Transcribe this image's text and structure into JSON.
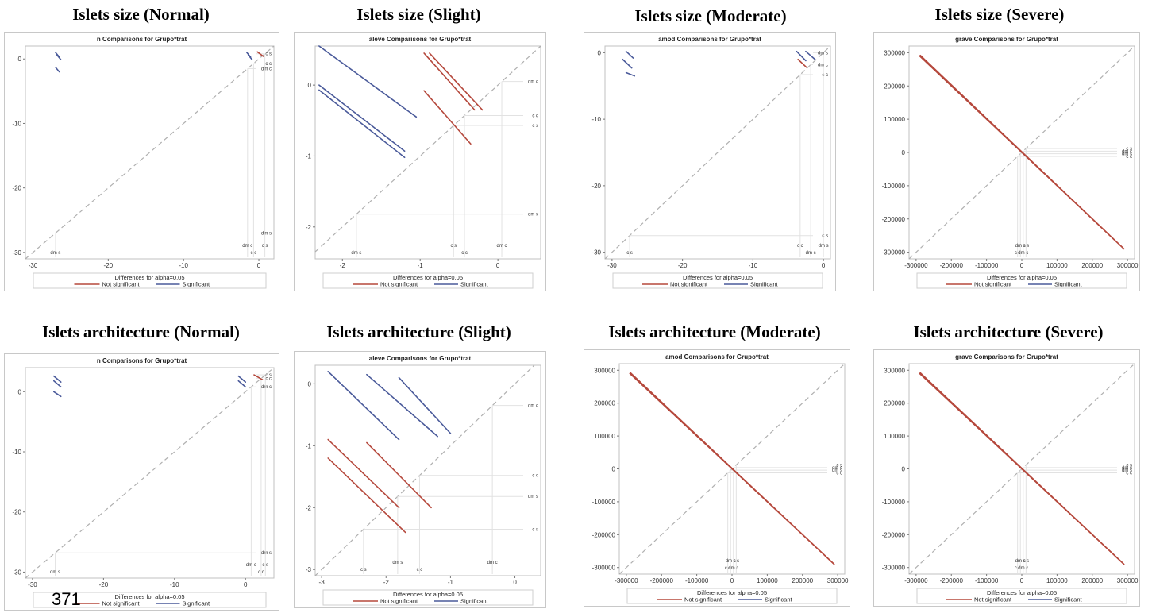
{
  "page": {
    "footnote": "371"
  },
  "legend": {
    "caption": "Differences for alpha=0.05",
    "not_significant": "Not significant",
    "significant": "Significant",
    "not_significant_color": "#b5483c",
    "significant_color": "#4a5a9a",
    "reference_color": "#b0b0b0"
  },
  "chart_data": [
    {
      "heading": "Islets size (Normal)",
      "title": "n Comparisons for Grupo*trat",
      "type": "scatter",
      "xlim": [
        -31,
        2
      ],
      "ylim": [
        -31,
        2
      ],
      "xticks": [
        -30,
        -20,
        -10,
        0
      ],
      "yticks": [
        0,
        -10,
        -20,
        -30
      ],
      "level_labels": [
        {
          "label": "dm s",
          "value": -27
        },
        {
          "label": "dm c",
          "value": -1.5
        },
        {
          "label": "c c",
          "value": -0.7
        },
        {
          "label": "c s",
          "value": 0.8
        }
      ],
      "lines": [
        {
          "x": [
            -27,
            -26.5
          ],
          "y": [
            1,
            0.3
          ],
          "sig": true
        },
        {
          "x": [
            -26.8,
            -26.3
          ],
          "y": [
            0.6,
            -0.1
          ],
          "sig": true
        },
        {
          "x": [
            -27,
            -26.5
          ],
          "y": [
            -1.3,
            -2
          ],
          "sig": true
        },
        {
          "x": [
            -1.6,
            -1.1
          ],
          "y": [
            1,
            0.3
          ],
          "sig": true
        },
        {
          "x": [
            -1.4,
            -0.9
          ],
          "y": [
            0.6,
            -0.1
          ],
          "sig": true
        },
        {
          "x": [
            -0.2,
            0.6
          ],
          "y": [
            1.1,
            0.4
          ],
          "sig": false
        }
      ]
    },
    {
      "heading": "Islets size (Slight)",
      "title": "aleve Comparisons for Grupo*trat",
      "type": "scatter",
      "xlim": [
        -2.35,
        0.55
      ],
      "ylim": [
        -2.45,
        0.55
      ],
      "xticks": [
        -2,
        -1,
        0
      ],
      "yticks": [
        0,
        -1,
        -2
      ],
      "level_labels": [
        {
          "label": "dm s",
          "value": -1.82
        },
        {
          "label": "c s",
          "value": -0.57
        },
        {
          "label": "c c",
          "value": -0.43
        },
        {
          "label": "dm c",
          "value": 0.05
        }
      ],
      "lines": [
        {
          "x": [
            -2.3,
            -1.05
          ],
          "y": [
            0.55,
            -0.45
          ],
          "sig": true
        },
        {
          "x": [
            -2.3,
            -1.2
          ],
          "y": [
            0,
            -0.93
          ],
          "sig": true
        },
        {
          "x": [
            -2.3,
            -1.2
          ],
          "y": [
            -0.07,
            -1.02
          ],
          "sig": true
        },
        {
          "x": [
            -0.95,
            -0.3
          ],
          "y": [
            0.45,
            -0.35
          ],
          "sig": false
        },
        {
          "x": [
            -0.88,
            -0.2
          ],
          "y": [
            0.45,
            -0.35
          ],
          "sig": false
        },
        {
          "x": [
            -0.95,
            -0.35
          ],
          "y": [
            -0.08,
            -0.83
          ],
          "sig": false
        }
      ]
    },
    {
      "heading": "Islets size (Moderate)",
      "title": "amod Comparisons for Grupo*trat",
      "type": "scatter",
      "xlim": [
        -31,
        1
      ],
      "ylim": [
        -31,
        1
      ],
      "xticks": [
        -30,
        -20,
        -10,
        0
      ],
      "yticks": [
        0,
        -10,
        -20,
        -30
      ],
      "level_labels": [
        {
          "label": "c s",
          "value": -27.5
        },
        {
          "label": "c c",
          "value": -3.3
        },
        {
          "label": "dm c",
          "value": -1.8
        },
        {
          "label": "dm s",
          "value": 0
        }
      ],
      "lines": [
        {
          "x": [
            -28,
            -27
          ],
          "y": [
            0.2,
            -0.8
          ],
          "sig": true
        },
        {
          "x": [
            -28.5,
            -27.2
          ],
          "y": [
            -1,
            -2.3
          ],
          "sig": true
        },
        {
          "x": [
            -28,
            -26.8
          ],
          "y": [
            -3,
            -3.5
          ],
          "sig": true
        },
        {
          "x": [
            -3.8,
            -2.5
          ],
          "y": [
            0.2,
            -1.2
          ],
          "sig": true
        },
        {
          "x": [
            -3.6,
            -2.4
          ],
          "y": [
            -1,
            -2.2
          ],
          "sig": false
        },
        {
          "x": [
            -2.5,
            -1.2
          ],
          "y": [
            0.2,
            -1
          ],
          "sig": true
        }
      ]
    },
    {
      "heading": "Islets size (Severe)",
      "title": "grave Comparisons for Grupo*trat",
      "type": "scatter",
      "xlim": [
        -320000,
        320000
      ],
      "ylim": [
        -320000,
        320000
      ],
      "xticks": [
        -300000,
        -200000,
        -100000,
        0,
        100000,
        200000,
        300000
      ],
      "yticks": [
        300000,
        200000,
        100000,
        0,
        -100000,
        -200000,
        -300000
      ],
      "level_labels": [
        {
          "label": "c c",
          "value": -12000
        },
        {
          "label": "dm s",
          "value": -4000
        },
        {
          "label": "dm c",
          "value": 4000
        },
        {
          "label": "c s",
          "value": 12000
        }
      ],
      "lines": [
        {
          "x": [
            -290000,
            290000
          ],
          "y": [
            290000,
            -290000
          ],
          "sig": false
        },
        {
          "x": [
            -288000,
            288000
          ],
          "y": [
            292000,
            -288000
          ],
          "sig": false
        }
      ]
    },
    {
      "heading": "Islets architecture (Normal)",
      "title": "n Comparisons for Grupo*trat",
      "type": "scatter",
      "xlim": [
        -31,
        4
      ],
      "ylim": [
        -31,
        4
      ],
      "xticks": [
        -30,
        -20,
        -10,
        0
      ],
      "yticks": [
        0,
        -10,
        -20,
        -30
      ],
      "level_labels": [
        {
          "label": "dm s",
          "value": -26.8
        },
        {
          "label": "dm c",
          "value": 0.8
        },
        {
          "label": "c c",
          "value": 2.2
        },
        {
          "label": "c s",
          "value": 2.8
        }
      ],
      "lines": [
        {
          "x": [
            -27,
            -26
          ],
          "y": [
            2.6,
            1.6
          ],
          "sig": true
        },
        {
          "x": [
            -27,
            -26
          ],
          "y": [
            1.8,
            0.8
          ],
          "sig": true
        },
        {
          "x": [
            -27,
            -26
          ],
          "y": [
            0,
            -0.8
          ],
          "sig": true
        },
        {
          "x": [
            -1,
            0
          ],
          "y": [
            2.6,
            1.6
          ],
          "sig": true
        },
        {
          "x": [
            -1,
            0
          ],
          "y": [
            1.8,
            0.8
          ],
          "sig": true
        },
        {
          "x": [
            1.2,
            2.4
          ],
          "y": [
            2.8,
            2
          ],
          "sig": false
        }
      ]
    },
    {
      "heading": "Islets architecture (Slight)",
      "title": "aleve Comparisons for Grupo*trat",
      "type": "scatter",
      "xlim": [
        -3.1,
        0.4
      ],
      "ylim": [
        -3.1,
        0.3
      ],
      "xticks": [
        -3,
        -2,
        -1,
        0
      ],
      "yticks": [
        0,
        -1,
        -2,
        -3
      ],
      "level_labels": [
        {
          "label": "c s",
          "value": -2.35
        },
        {
          "label": "dm s",
          "value": -1.82
        },
        {
          "label": "c c",
          "value": -1.48
        },
        {
          "label": "dm c",
          "value": -0.35
        }
      ],
      "lines": [
        {
          "x": [
            -2.9,
            -1.8
          ],
          "y": [
            0.2,
            -0.9
          ],
          "sig": true
        },
        {
          "x": [
            -2.3,
            -1.2
          ],
          "y": [
            0.15,
            -0.85
          ],
          "sig": true
        },
        {
          "x": [
            -1.8,
            -1.0
          ],
          "y": [
            0.1,
            -0.8
          ],
          "sig": true
        },
        {
          "x": [
            -2.9,
            -1.8
          ],
          "y": [
            -0.9,
            -2.0
          ],
          "sig": false
        },
        {
          "x": [
            -2.9,
            -1.7
          ],
          "y": [
            -1.2,
            -2.4
          ],
          "sig": false
        },
        {
          "x": [
            -2.3,
            -1.3
          ],
          "y": [
            -0.95,
            -2.0
          ],
          "sig": false
        }
      ]
    },
    {
      "heading": "Islets architecture (Moderate)",
      "title": "amod Comparisons for Grupo*trat",
      "type": "scatter",
      "xlim": [
        -320000,
        320000
      ],
      "ylim": [
        -320000,
        320000
      ],
      "xticks": [
        -300000,
        -200000,
        -100000,
        0,
        100000,
        200000,
        300000
      ],
      "yticks": [
        300000,
        200000,
        100000,
        0,
        -100000,
        -200000,
        -300000
      ],
      "level_labels": [
        {
          "label": "c c",
          "value": -12000
        },
        {
          "label": "dm s",
          "value": -4000
        },
        {
          "label": "dm c",
          "value": 4000
        },
        {
          "label": "c s",
          "value": 12000
        }
      ],
      "lines": [
        {
          "x": [
            -290000,
            290000
          ],
          "y": [
            290000,
            -290000
          ],
          "sig": false
        },
        {
          "x": [
            -288000,
            288000
          ],
          "y": [
            292000,
            -288000
          ],
          "sig": false
        }
      ]
    },
    {
      "heading": "Islets architecture (Severe)",
      "title": "grave Comparisons for Grupo*trat",
      "type": "scatter",
      "xlim": [
        -320000,
        320000
      ],
      "ylim": [
        -320000,
        320000
      ],
      "xticks": [
        -300000,
        -200000,
        -100000,
        0,
        100000,
        200000,
        300000
      ],
      "yticks": [
        300000,
        200000,
        100000,
        0,
        -100000,
        -200000,
        -300000
      ],
      "level_labels": [
        {
          "label": "c c",
          "value": -12000
        },
        {
          "label": "dm s",
          "value": -4000
        },
        {
          "label": "dm c",
          "value": 4000
        },
        {
          "label": "c s",
          "value": 12000
        }
      ],
      "lines": [
        {
          "x": [
            -290000,
            290000
          ],
          "y": [
            290000,
            -290000
          ],
          "sig": false
        },
        {
          "x": [
            -288000,
            288000
          ],
          "y": [
            292000,
            -288000
          ],
          "sig": false
        }
      ]
    }
  ]
}
